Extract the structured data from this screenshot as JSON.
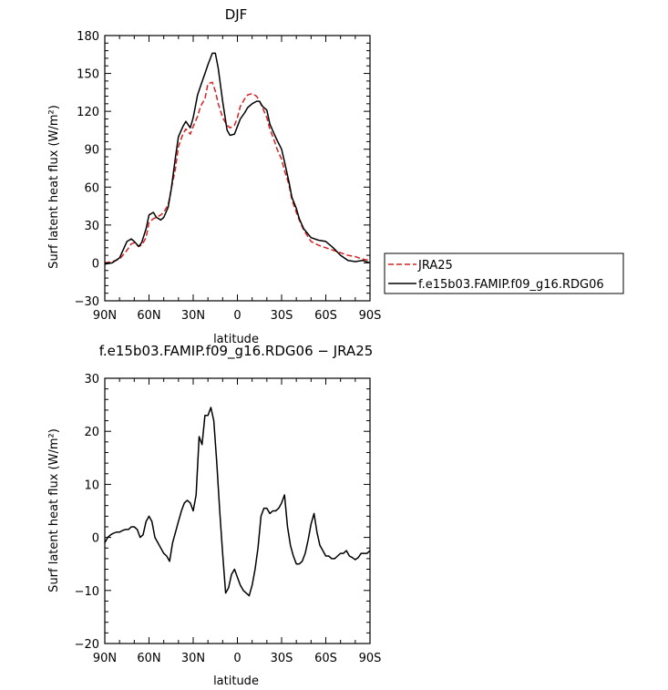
{
  "chart_data": [
    {
      "type": "line",
      "title": "DJF",
      "xlabel": "latitude",
      "ylabel": "Surf latent heat flux (W/m²)",
      "ylim": [
        -30,
        180
      ],
      "yticks": [
        -30,
        0,
        30,
        60,
        90,
        120,
        150,
        180
      ],
      "xlim": [
        90,
        -90
      ],
      "xticks": [
        90,
        60,
        30,
        0,
        -30,
        -60,
        -90
      ],
      "xtick_labels": [
        "90N",
        "60N",
        "30N",
        "0",
        "30S",
        "60S",
        "90S"
      ],
      "legend_position": "right",
      "series": [
        {
          "name": "JRA25",
          "color": "#d62020",
          "dash": "dashed",
          "x": [
            90,
            85,
            80,
            75,
            72,
            70,
            67,
            65,
            62,
            60,
            57,
            55,
            52,
            50,
            47,
            45,
            42,
            40,
            37,
            35,
            32,
            30,
            27,
            25,
            22,
            20,
            17,
            15,
            13,
            10,
            7,
            5,
            2,
            0,
            -2,
            -5,
            -7,
            -10,
            -13,
            -15,
            -17,
            -20,
            -22,
            -25,
            -27,
            -30,
            -32,
            -35,
            -37,
            -40,
            -42,
            -45,
            -50,
            -55,
            -60,
            -65,
            -70,
            -75,
            -80,
            -85,
            -90
          ],
          "y": [
            0,
            1,
            3,
            10,
            15,
            16,
            13,
            14,
            20,
            32,
            35,
            36,
            38,
            40,
            46,
            58,
            75,
            92,
            102,
            106,
            102,
            108,
            116,
            124,
            130,
            142,
            143,
            136,
            126,
            115,
            109,
            107,
            109,
            115,
            124,
            130,
            133,
            134,
            132,
            128,
            123,
            115,
            106,
            97,
            90,
            82,
            73,
            62,
            50,
            40,
            34,
            26,
            17,
            14,
            12,
            10,
            8,
            6,
            5,
            3,
            2
          ]
        },
        {
          "name": "f.e15b03.FAMIP.f09_g16.RDG06",
          "color": "#000000",
          "dash": "solid",
          "x": [
            90,
            85,
            80,
            75,
            72,
            70,
            67,
            65,
            62,
            60,
            57,
            55,
            52,
            50,
            47,
            45,
            42,
            40,
            37,
            35,
            32,
            30,
            27,
            25,
            22,
            20,
            17,
            15,
            13,
            10,
            7,
            5,
            2,
            0,
            -2,
            -5,
            -7,
            -10,
            -13,
            -15,
            -17,
            -20,
            -22,
            -25,
            -27,
            -30,
            -32,
            -35,
            -37,
            -40,
            -42,
            -45,
            -50,
            -55,
            -60,
            -65,
            -70,
            -75,
            -80,
            -85,
            -90
          ],
          "y": [
            -1,
            0,
            4,
            17,
            19,
            17,
            13,
            16,
            27,
            38,
            40,
            36,
            34,
            36,
            44,
            58,
            84,
            100,
            108,
            112,
            107,
            115,
            133,
            140,
            150,
            157,
            166,
            166,
            154,
            128,
            105,
            101,
            102,
            108,
            114,
            119,
            123,
            126,
            128,
            128,
            124,
            121,
            110,
            102,
            97,
            90,
            80,
            64,
            52,
            43,
            35,
            27,
            20,
            18,
            17,
            12,
            6,
            2,
            1,
            2,
            0
          ]
        }
      ]
    },
    {
      "type": "line",
      "title": "f.e15b03.FAMIP.f09_g16.RDG06 − JRA25",
      "xlabel": "latitude",
      "ylabel": "Surf latent heat flux (W/m²)",
      "ylim": [
        -20,
        30
      ],
      "yticks": [
        -20,
        -10,
        0,
        10,
        20,
        30
      ],
      "xlim": [
        90,
        -90
      ],
      "xticks": [
        90,
        60,
        30,
        0,
        -30,
        -60,
        -90
      ],
      "xtick_labels": [
        "90N",
        "60N",
        "30N",
        "0",
        "30S",
        "60S",
        "90S"
      ],
      "series": [
        {
          "color": "#000000",
          "dash": "solid",
          "x": [
            90,
            88,
            86,
            84,
            82,
            80,
            78,
            76,
            74,
            72,
            70,
            68,
            66,
            64,
            62,
            60,
            58,
            56,
            54,
            52,
            50,
            48,
            46,
            44,
            42,
            40,
            38,
            36,
            34,
            32,
            30,
            28,
            26,
            24,
            22,
            20,
            18,
            16,
            14,
            12,
            10,
            8,
            6,
            4,
            2,
            0,
            -2,
            -4,
            -6,
            -8,
            -10,
            -12,
            -14,
            -16,
            -18,
            -20,
            -22,
            -24,
            -26,
            -28,
            -30,
            -32,
            -34,
            -36,
            -38,
            -40,
            -42,
            -44,
            -46,
            -48,
            -50,
            -52,
            -54,
            -56,
            -58,
            -60,
            -62,
            -64,
            -66,
            -68,
            -70,
            -72,
            -74,
            -76,
            -78,
            -80,
            -82,
            -84,
            -86,
            -88,
            -90
          ],
          "y": [
            -1,
            0,
            0.5,
            0.8,
            1,
            1,
            1.3,
            1.5,
            1.5,
            2,
            2,
            1.5,
            0,
            0.5,
            3,
            4,
            3,
            0,
            -1,
            -2,
            -3,
            -3.5,
            -4.5,
            -1,
            1,
            3,
            5,
            6.5,
            7,
            6.5,
            5,
            8,
            19,
            17.5,
            23,
            23,
            24.5,
            22,
            14,
            5,
            -3,
            -10.5,
            -9.5,
            -7,
            -6,
            -7.5,
            -9,
            -10,
            -10.5,
            -11,
            -9,
            -6,
            -2,
            4,
            5.5,
            5.5,
            4.5,
            5,
            5,
            5.5,
            6.5,
            8,
            2,
            -1.5,
            -3.5,
            -5,
            -5,
            -4.5,
            -3,
            -0.5,
            2.5,
            4.5,
            1,
            -1.5,
            -2.5,
            -3.5,
            -3.5,
            -4,
            -4,
            -3.5,
            -3,
            -3,
            -2.5,
            -3.5,
            -3.8,
            -4.2,
            -3.8,
            -3,
            -3,
            -3,
            -2.5
          ]
        }
      ]
    }
  ]
}
